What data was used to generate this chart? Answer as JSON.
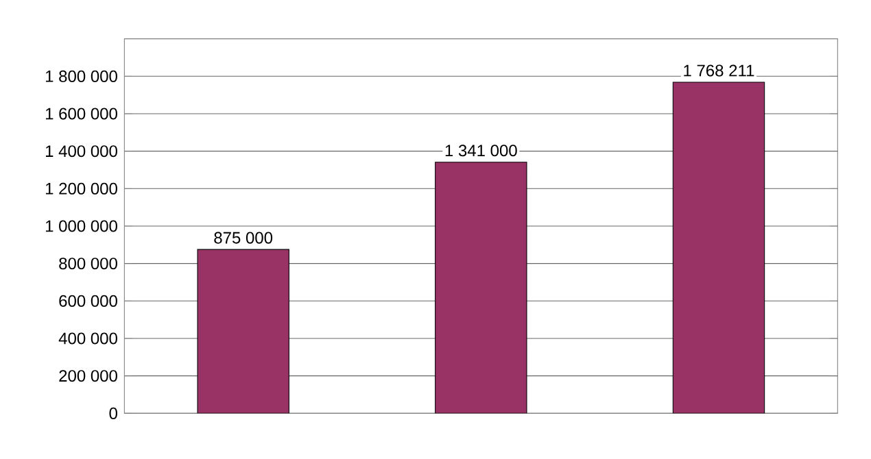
{
  "chart_data": {
    "type": "bar",
    "categories": [
      null,
      null,
      null
    ],
    "values": [
      875000,
      1341000,
      1768211
    ],
    "value_labels": [
      "875 000",
      "1 341 000",
      "1 768 211"
    ],
    "color": "#993366",
    "ylim": [
      0,
      2000000
    ],
    "yticks": [
      {
        "value": 0,
        "label": "0"
      },
      {
        "value": 200000,
        "label": "200 000"
      },
      {
        "value": 400000,
        "label": "400 000"
      },
      {
        "value": 600000,
        "label": "600 000"
      },
      {
        "value": 800000,
        "label": "800 000"
      },
      {
        "value": 1000000,
        "label": "1 000 000"
      },
      {
        "value": 1200000,
        "label": "1 200 000"
      },
      {
        "value": 1400000,
        "label": "1 400 000"
      },
      {
        "value": 1600000,
        "label": "1 600 000"
      },
      {
        "value": 1800000,
        "label": "1 800 000"
      }
    ],
    "grid": true
  }
}
